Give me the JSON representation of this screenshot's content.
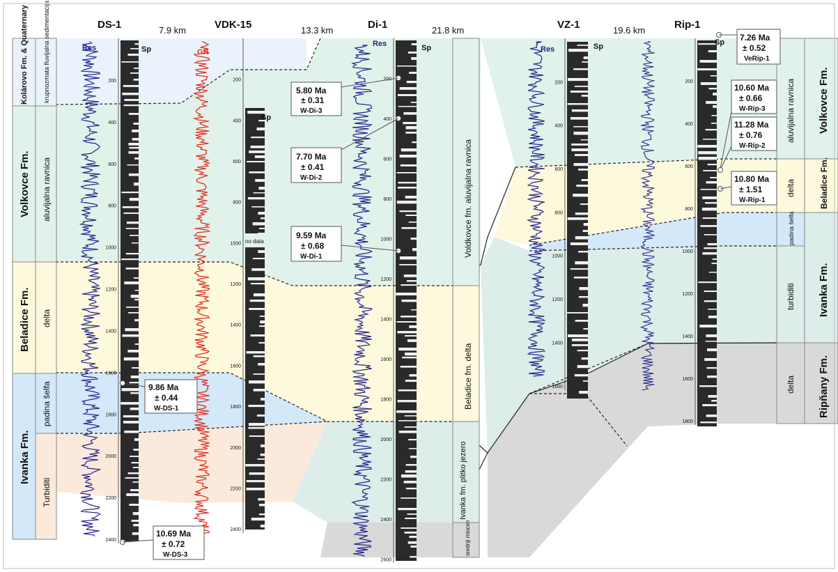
{
  "wells": [
    {
      "name": "DS-1",
      "spLabel": "Sp",
      "resLabel": "Res"
    },
    {
      "name": "VDK-15",
      "spLabel": "Sp",
      "grLabel": "GR",
      "noData": "no data"
    },
    {
      "name": "Di-1",
      "spLabel": "Sp",
      "resLabel": "Res"
    },
    {
      "name": "VZ-1",
      "spLabel": "Sp",
      "resLabel": "Res"
    },
    {
      "name": "Rip-1",
      "spLabel": "Sp"
    }
  ],
  "distances": [
    "7.9 km",
    "13.3 km",
    "21.8 km",
    "19.6 km"
  ],
  "leftFormations": [
    {
      "name": "Kolárovo Fm. & Quaternary",
      "env": "krupnozmata fluvijalna sedimentacija",
      "color": "#eaf3fc"
    },
    {
      "name": "Volkovce Fm.",
      "env": "aluvijalna ravnica",
      "color": "#e1f2ea"
    },
    {
      "name": "Beladice Fm.",
      "env": "delta",
      "color": "#fdf9dc"
    },
    {
      "name": "Ivanka Fm.",
      "env": "padina šelfa",
      "color": "#d3e8f8"
    },
    {
      "name": "",
      "env": "Turbiditi",
      "color": "#fbeadb"
    }
  ],
  "di1Column": [
    "Voldkovce fm. aluvijalna ravnica",
    "Beladice fm. delta",
    "Ivanka fm. plitko jezero",
    "srednji miocen"
  ],
  "rightEnv": [
    "aluvijalna ravnica",
    "delta",
    "padina šelfa",
    "turbiditi",
    "delta"
  ],
  "rightFormations": [
    "Volkovce Fm.",
    "Beladice Fm.",
    "Ivanka Fm.",
    "Ripňany Fm."
  ],
  "ages": [
    {
      "age": "9.86 Ma",
      "err": "± 0.44",
      "sample": "W-DS-1"
    },
    {
      "age": "10.69 Ma",
      "err": "± 0.72",
      "sample": "W-DS-3"
    },
    {
      "age": "5.80 Ma",
      "err": "± 0.31",
      "sample": "W-Di-3"
    },
    {
      "age": "7.70 Ma",
      "err": "± 0.41",
      "sample": "W-Di-2"
    },
    {
      "age": "9.59 Ma",
      "err": "± 0.68",
      "sample": "W-Di-1"
    },
    {
      "age": "7.26 Ma",
      "err": "± 0.52",
      "sample": "VeRip-1"
    },
    {
      "age": "10.60 Ma",
      "err": "± 0.66",
      "sample": "W-Rip-3"
    },
    {
      "age": "11.28 Ma",
      "err": "± 0.76",
      "sample": "W-Rip-2"
    },
    {
      "age": "10.80 Ma",
      "err": "± 1.51",
      "sample": "W-Rip-1"
    }
  ],
  "depthTicks": {
    "ds1": [
      "200",
      "400",
      "600",
      "800",
      "1000",
      "1200",
      "1400",
      "1600",
      "1800",
      "2000",
      "2200",
      "2400"
    ],
    "vdk15": [
      "200",
      "400",
      "600",
      "800",
      "1000",
      "1200",
      "1400",
      "1600",
      "1800",
      "2000",
      "2200",
      "2400"
    ],
    "di1": [
      "200",
      "400",
      "600",
      "800",
      "1000",
      "1200",
      "1400",
      "1600",
      "1800",
      "2000",
      "2200",
      "2400",
      "2600"
    ],
    "vz1": [
      "200",
      "400",
      "600",
      "800",
      "1000",
      "1200",
      "1400",
      "1600"
    ],
    "rip1": [
      "200",
      "400",
      "600",
      "800",
      "1000",
      "1200",
      "1400",
      "1600",
      "1800"
    ]
  },
  "colors": {
    "res": "#23238a",
    "gr": "#e03020",
    "sp": "#1a1a1a",
    "grey": "#d9d9d9"
  }
}
